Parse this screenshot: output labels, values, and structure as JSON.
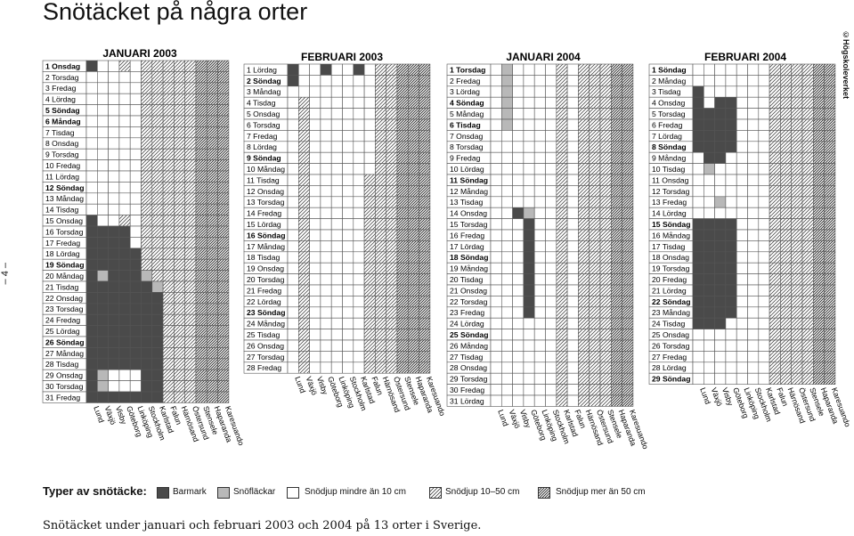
{
  "title": "Snötäcket på några orter",
  "copyright": "©Högskoleverket",
  "page_number": "– 4 –",
  "caption": "Snötäcket under januari och februari 2003 och 2004 på 13 orter i Sverige.",
  "legend": {
    "title": "Typer av snötäcke:",
    "items": [
      {
        "code": "B",
        "label": "Barmark"
      },
      {
        "code": "F",
        "label": "Snöfläckar"
      },
      {
        "code": "S",
        "label": "Snödjup mindre än 10 cm"
      },
      {
        "code": "M",
        "label": "Snödjup 10–50 cm"
      },
      {
        "code": "D",
        "label": "Snödjup mer än 50 cm"
      }
    ]
  },
  "colors": {
    "B": "#4a4a4a",
    "F": "#b8b8b8",
    "S": "#ffffff",
    "line": "#555555"
  },
  "chart_data": {
    "type": "heatmap",
    "towns": [
      "Lund",
      "Växjö",
      "Visby",
      "Göteborg",
      "Linköping",
      "Stockholm",
      "Karlstad",
      "Falun",
      "Härnösand",
      "Östersund",
      "Stensele",
      "Haparanda",
      "Karesuando"
    ],
    "panels": [
      {
        "title": "JANUARI 2003",
        "days": [
          "1 Onsdag",
          "2 Torsdag",
          "3 Fredag",
          "4 Lördag",
          "5 Söndag",
          "6 Måndag",
          "7 Tisdag",
          "8 Onsdag",
          "9 Torsdag",
          "10 Fredag",
          "11 Lördag",
          "12 Söndag",
          "13 Måndag",
          "14 Tisdag",
          "15 Onsdag",
          "16 Torsdag",
          "17 Fredag",
          "18 Lördag",
          "19 Söndag",
          "20 Måndag",
          "21 Tisdag",
          "22 Onsdag",
          "23 Torsdag",
          "24 Fredag",
          "25 Lördag",
          "26 Söndag",
          "27 Måndag",
          "28 Tisdag",
          "29 Onsdag",
          "30 Torsdag",
          "31 Fredag"
        ],
        "bold": [
          0,
          4,
          5,
          11,
          18,
          25
        ],
        "cells": [
          "BSSMSMMMMMDDD",
          "SSSSSMMMMMDDD",
          "SSSSSMMMMMDDD",
          "SSSSSMMMMMDDD",
          "SSSSSMMMMMDDD",
          "SSSSSMMMMMDDD",
          "SSSSSMMMMMDDD",
          "SSSSSMMMMMDDD",
          "SSSSSMMMMMDDD",
          "SSSSSMMMMMDDD",
          "SSSSSMMMMMDDD",
          "SSSSSMMMMMDDD",
          "SSSSSMMMMMDDD",
          "SSSSSMMMMMDDD",
          "BSSMSMMMMMDDD",
          "BBBBSMMMMMDDD",
          "BBBBSMMMMMDDD",
          "BBBBBMMMMMDDD",
          "BBBBBMMMMMDDD",
          "BFBBBFMMMMDDD",
          "BBBBBBFMMMDDD",
          "BBBBBBBMMMDDD",
          "BBBBBBBMMMDDD",
          "BBBBBBBMMMDDD",
          "BBBBBBBMMMDDD",
          "BBBBBBBMMMDDD",
          "BBBBBBBMMMDDD",
          "BBBBBBBMMMDDD",
          "BFSSSBBMMMDDD",
          "BFSSSBBMMMDDD",
          "BBBBBBBMMMDDD"
        ]
      },
      {
        "title": "FEBRUARI 2003",
        "days": [
          "1 Lördag",
          "2 Söndag",
          "3 Måndag",
          "4 Tisdag",
          "5 Onsdag",
          "6 Torsdag",
          "7 Fredag",
          "8 Lördag",
          "9 Söndag",
          "10 Måndag",
          "11 Tisdag",
          "12 Onsdag",
          "13 Torsdag",
          "14 Fredag",
          "15 Lördag",
          "16 Söndag",
          "17 Måndag",
          "18 Tisdag",
          "19 Onsdag",
          "20 Torsdag",
          "21 Fredag",
          "22 Lördag",
          "23 Söndag",
          "24 Måndag",
          "25 Tisdag",
          "26 Onsdag",
          "27 Torsdag",
          "28 Fredag"
        ],
        "bold": [
          1,
          8,
          15,
          22
        ],
        "cells": [
          "BSSBSSBSMMDDD",
          "BSSSSSSSMMDDD",
          "SSSSSSSSMMDDD",
          "SMSSSSSSMMDDD",
          "SMSSSSSSMMDDD",
          "SMSSSSSSMMDDD",
          "SMSSSSSSMMDDD",
          "SMSSSSSSMMDDD",
          "SMSSSSSSMMDDD",
          "SMSSSSSSMMDDD",
          "SMSSSSSMMMDDD",
          "SMSSSSSMMMDDD",
          "SMSSSSSMMMDDD",
          "SMSSSSSMMMDDD",
          "SMSSSSSMMMDDD",
          "SMSSSSSMMMDDD",
          "SMSSSSSMMMDDD",
          "SMSSSSSMMMDDD",
          "SMSSSSSMMMDDD",
          "SMSSSSSMMMDDD",
          "SMSSSSSMMMDDD",
          "SMSSSSSMMMDDD",
          "SMSSSSSMMMDDD",
          "SMSSSSSMMMDDD",
          "SMSSSSSMMMDDD",
          "SMSSSSSMMMDDD",
          "SMSSSSSMMMDDD",
          "SMSSSSSMMMDDD"
        ]
      },
      {
        "title": "JANUARI 2004",
        "days": [
          "1 Torsdag",
          "2 Fredag",
          "3 Lördag",
          "4 Söndag",
          "5 Måndag",
          "6 Tisdag",
          "7 Onsdag",
          "8 Torsdag",
          "9 Fredag",
          "10 Lördag",
          "11 Söndag",
          "12 Måndag",
          "13 Tisdag",
          "14 Onsdag",
          "15 Torsdag",
          "16 Fredag",
          "17 Lördag",
          "18 Söndag",
          "19 Måndag",
          "20 Tisdag",
          "21 Onsdag",
          "22 Torsdag",
          "23 Fredag",
          "24 Lördag",
          "25 Söndag",
          "26 Måndag",
          "27 Tisdag",
          "28 Onsdag",
          "29 Torsdag",
          "30 Fredag",
          "31 Lördag"
        ],
        "bold": [
          0,
          3,
          5,
          10,
          17,
          24
        ],
        "cells": [
          "SFSSSSMSMMMDD",
          "SFSSSSMSMMMDD",
          "SFSSSSMSMMMDD",
          "SFSSSSMSMMMDD",
          "SFSSSSMSMMMDD",
          "SFSSSSMSMMMDD",
          "SSSSSSMSMMMDD",
          "SSSSSSMSMMMDD",
          "SSSSSSMSMMMDD",
          "SSSSSSMSMMMDD",
          "SSSSSSMSMMMDD",
          "SSSSSSMSMMMDD",
          "SSSSSSMSMMMDD",
          "SSBFSSMSMMMDD",
          "SSSBSSMSMMMDD",
          "SSSBSSMSMMMDD",
          "SSSBSSMSMMMDD",
          "SSSBSSMSMMMDD",
          "SSSBSSMSMMMDD",
          "SSSBSSMSMMMDD",
          "SSSBSSMSMMMDD",
          "SSSBSSMSMMMDD",
          "SSSBSSMSMMMDD",
          "SSSSSSMSMMMDD",
          "SSSSSSMSMMMDD",
          "SSSSSSMSMMMDD",
          "SSSSSSMSMMMDD",
          "SSSSSSMSMMMDD",
          "SSSSSSMSMMMDD",
          "SSSSSSMSMMMDD",
          "SSSSSSMSMMMDD"
        ]
      },
      {
        "title": "FEBRUARI 2004",
        "days": [
          "1 Söndag",
          "2 Måndag",
          "3 Tisdag",
          "4 Onsdag",
          "5 Torsdag",
          "6 Fredag",
          "7 Lördag",
          "8 Söndag",
          "9 Måndag",
          "10 Tisdag",
          "11 Onsdag",
          "12 Torsdag",
          "13 Fredag",
          "14 Lördag",
          "15 Söndag",
          "16 Måndag",
          "17 Tisdag",
          "18 Onsdag",
          "19 Torsdag",
          "20 Fredag",
          "21 Lördag",
          "22 Söndag",
          "23 Måndag",
          "24 Tisdag",
          "25 Onsdag",
          "26 Torsdag",
          "27 Fredag",
          "28 Lördag",
          "29 Söndag"
        ],
        "bold": [
          0,
          7,
          14,
          21,
          28
        ],
        "cells": [
          "SSSSSSSMMMMDD",
          "SSSSSSSMMMMDD",
          "BSSSSSSMMMMDD",
          "BSBBSSSMMMMDD",
          "BBBBSSSMMMMDD",
          "BBBBSSSMMMMDD",
          "BBBBSSSMMMMDD",
          "BBBBSSSMMMMDD",
          "SBBSSSSMMMMDD",
          "SFSSSSSMMMMDD",
          "SSSSSSSMMMMDD",
          "SSSSSSSMMMMDD",
          "SSFSSSSMMMMDD",
          "SSSSSSSMMMMDD",
          "BBBBSSSMMMMDD",
          "BBBBSSSMMMMDD",
          "BBBBSSSMMMMDD",
          "BBBBSSSMMMMDD",
          "BBBBSSSMMMMDD",
          "BBBBSSSMMMMDD",
          "BBBBSSSMMMMDD",
          "BBBBSSSMMMMDD",
          "BBBBSSSMMMMDD",
          "BBBSSSSMMMMDD",
          "SSSSSSSMMMMDD",
          "SSSSSSSMMMMDD",
          "SSSSSSSMMMMDD",
          "SSSSSSSMMMMDD",
          "SSSSSSSMMMMDD"
        ]
      }
    ]
  }
}
